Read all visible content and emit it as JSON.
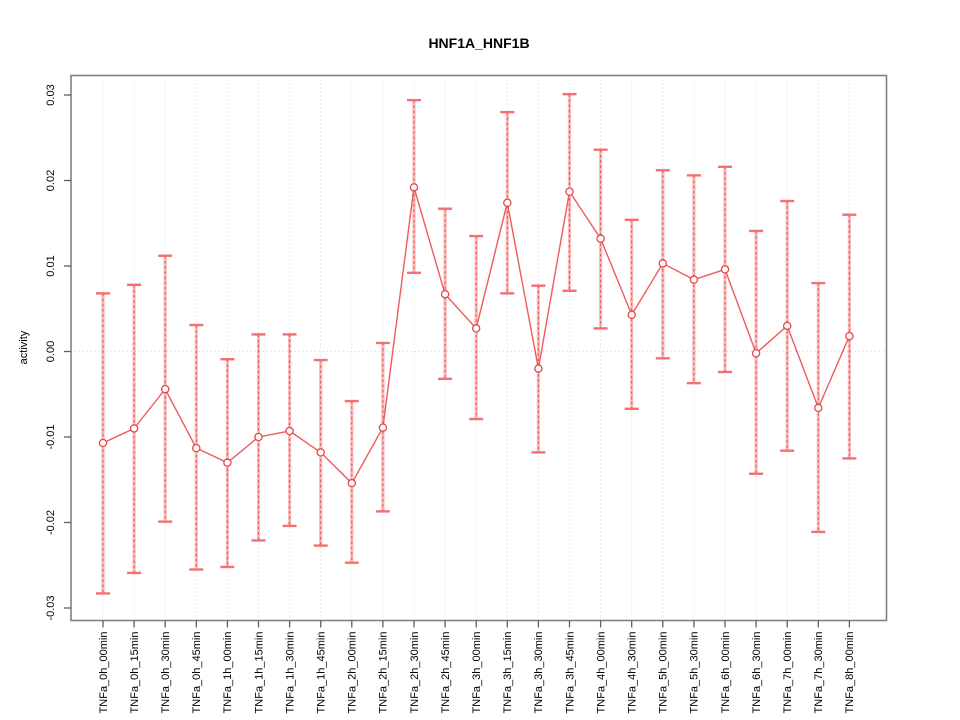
{
  "title": "HNF1A_HNF1B",
  "chart_data": {
    "type": "line",
    "title": "HNF1A_HNF1B",
    "xlabel": "",
    "ylabel": "activity",
    "ylim": [
      -0.03,
      0.03
    ],
    "yticks": [
      -0.03,
      -0.02,
      -0.01,
      0.0,
      0.01,
      0.02,
      0.03
    ],
    "ytick_labels": [
      "-0.03",
      "-0.02",
      "-0.01",
      "0.00",
      "0.01",
      "0.02",
      "0.03"
    ],
    "grid": "vertical dotted gridlines at each category; dotted horizontal line at y=0",
    "legend_position": "none",
    "marker": "open-circle",
    "error_bars": true,
    "categories": [
      "TNFa_0h_00min",
      "TNFa_0h_15min",
      "TNFa_0h_30min",
      "TNFa_0h_45min",
      "TNFa_1h_00min",
      "TNFa_1h_15min",
      "TNFa_1h_30min",
      "TNFa_1h_45min",
      "TNFa_2h_00min",
      "TNFa_2h_15min",
      "TNFa_2h_30min",
      "TNFa_2h_45min",
      "TNFa_3h_00min",
      "TNFa_3h_15min",
      "TNFa_3h_30min",
      "TNFa_3h_45min",
      "TNFa_4h_00min",
      "TNFa_4h_30min",
      "TNFa_5h_00min",
      "TNFa_5h_30min",
      "TNFa_6h_00min",
      "TNFa_6h_30min",
      "TNFa_7h_00min",
      "TNFa_7h_30min",
      "TNFa_8h_00min"
    ],
    "series": [
      {
        "name": "activity",
        "values": [
          -0.0107,
          -0.009,
          -0.0044,
          -0.0113,
          -0.013,
          -0.01,
          -0.0093,
          -0.0118,
          -0.0154,
          -0.0089,
          0.0192,
          0.0067,
          0.0027,
          0.0174,
          -0.002,
          0.0187,
          0.0132,
          0.0043,
          0.0103,
          0.0084,
          0.0096,
          -0.0002,
          0.003,
          -0.0066,
          0.0018
        ],
        "upper": [
          0.0068,
          0.0078,
          0.0112,
          0.0031,
          -0.0009,
          0.002,
          0.002,
          -0.001,
          -0.0058,
          0.001,
          0.0294,
          0.0167,
          0.0135,
          0.028,
          0.0077,
          0.0301,
          0.0236,
          0.0154,
          0.0212,
          0.0206,
          0.0216,
          0.0141,
          0.0176,
          0.008,
          0.016
        ],
        "lower": [
          -0.0283,
          -0.0259,
          -0.0199,
          -0.0255,
          -0.0252,
          -0.0221,
          -0.0204,
          -0.0227,
          -0.0247,
          -0.0187,
          0.0092,
          -0.0032,
          -0.0079,
          0.0068,
          -0.0118,
          0.0071,
          0.0027,
          -0.0067,
          -0.0008,
          -0.0037,
          -0.0024,
          -0.0143,
          -0.0116,
          -0.0211,
          -0.0125
        ]
      }
    ],
    "colors": {
      "series_line": "#ef5a5a",
      "marker_stroke": "#e04848",
      "error_bar_wide": "#fa8282",
      "error_bar_core": "#e04848",
      "error_bar_cap": "#f47070",
      "gridline": "#d6d6d6",
      "axis_box": "#818181",
      "tick": "#5f5f5f",
      "text": "#000000"
    }
  }
}
